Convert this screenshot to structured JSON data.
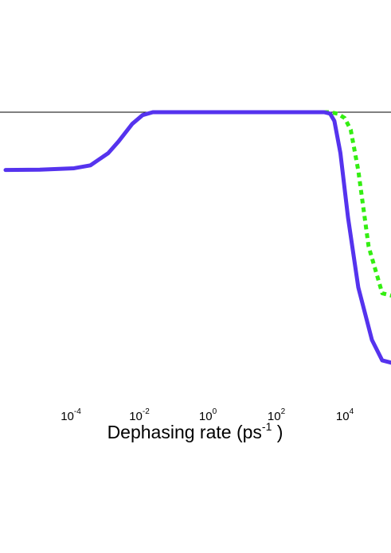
{
  "chart_data": {
    "type": "line",
    "xscale": "log",
    "xlabel": "Dephasing rate (ps-1 )",
    "xlabel_parts": {
      "base": "Dephasing rate (ps",
      "exp": "-1",
      "close": " )"
    },
    "xlim": [
      1e-06,
      1000000.0
    ],
    "ylim": [
      0,
      1
    ],
    "grid": false,
    "x_ticks": [
      {
        "value": 0.0001,
        "base": "10",
        "exp": "-4"
      },
      {
        "value": 0.01,
        "base": "10",
        "exp": "-2"
      },
      {
        "value": 1,
        "base": "10",
        "exp": "0"
      },
      {
        "value": 100,
        "base": "10",
        "exp": "2"
      },
      {
        "value": 10000,
        "base": "10",
        "exp": "4"
      }
    ],
    "series": [
      {
        "color": "#5533ee",
        "style": "solid",
        "x": [
          1e-06,
          1e-05,
          0.0001,
          0.0003,
          0.001,
          0.002,
          0.005,
          0.01,
          0.02,
          1,
          100,
          2000,
          3000,
          4000,
          6000,
          10000,
          20000,
          50000,
          100000,
          1000000
        ],
        "y": [
          0.802,
          0.803,
          0.808,
          0.818,
          0.86,
          0.9,
          0.96,
          0.99,
          1.0,
          1.0,
          1.0,
          1.0,
          0.995,
          0.97,
          0.86,
          0.64,
          0.4,
          0.22,
          0.15,
          0.12
        ]
      },
      {
        "color": "#33ee11",
        "style": "dotted",
        "x": [
          2000,
          3000,
          5000,
          8000,
          12000,
          20000,
          40000,
          100000,
          1000000
        ],
        "y": [
          1.0,
          1.0,
          0.995,
          0.98,
          0.94,
          0.8,
          0.54,
          0.38,
          0.35
        ]
      }
    ]
  }
}
